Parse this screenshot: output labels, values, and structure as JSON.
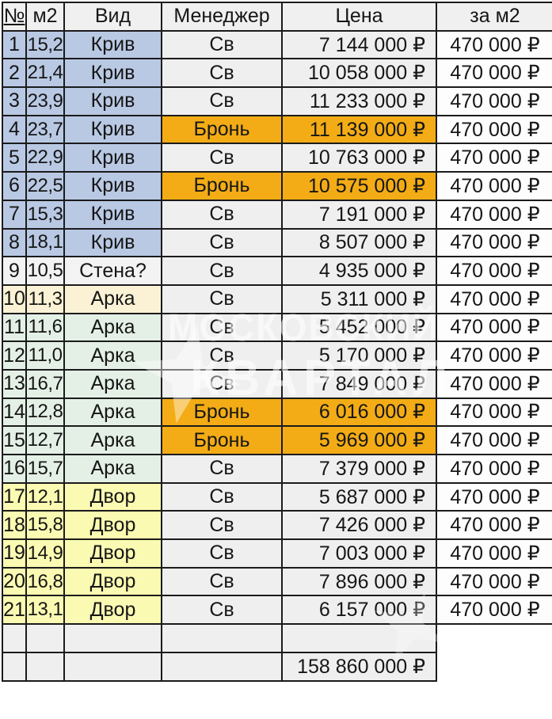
{
  "table": {
    "columns": [
      {
        "key": "num",
        "label": "№"
      },
      {
        "key": "m2",
        "label": "м2"
      },
      {
        "key": "vid",
        "label": "Вид"
      },
      {
        "key": "manager",
        "label": "Менеджер"
      },
      {
        "key": "price",
        "label": "Цена"
      },
      {
        "key": "per_m2",
        "label": "за м2"
      }
    ],
    "rows": [
      {
        "num": "1",
        "m2": "15,2",
        "vid": "Крив",
        "manager": "Св",
        "price": "7 144 000 ₽",
        "per_m2": "470 000 ₽",
        "band": "blue",
        "booked": false
      },
      {
        "num": "2",
        "m2": "21,4",
        "vid": "Крив",
        "manager": "Св",
        "price": "10 058 000 ₽",
        "per_m2": "470 000 ₽",
        "band": "blue",
        "booked": false
      },
      {
        "num": "3",
        "m2": "23,9",
        "vid": "Крив",
        "manager": "Св",
        "price": "11 233 000 ₽",
        "per_m2": "470 000 ₽",
        "band": "blue",
        "booked": false
      },
      {
        "num": "4",
        "m2": "23,7",
        "vid": "Крив",
        "manager": "Бронь",
        "price": "11 139 000 ₽",
        "per_m2": "470 000 ₽",
        "band": "blue",
        "booked": true
      },
      {
        "num": "5",
        "m2": "22,9",
        "vid": "Крив",
        "manager": "Св",
        "price": "10 763 000 ₽",
        "per_m2": "470 000 ₽",
        "band": "blue",
        "booked": false
      },
      {
        "num": "6",
        "m2": "22,5",
        "vid": "Крив",
        "manager": "Бронь",
        "price": "10 575 000 ₽",
        "per_m2": "470 000 ₽",
        "band": "blue",
        "booked": true
      },
      {
        "num": "7",
        "m2": "15,3",
        "vid": "Крив",
        "manager": "Св",
        "price": "7 191 000 ₽",
        "per_m2": "470 000 ₽",
        "band": "blue",
        "booked": false
      },
      {
        "num": "8",
        "m2": "18,1",
        "vid": "Крив",
        "manager": "Св",
        "price": "8 507 000 ₽",
        "per_m2": "470 000 ₽",
        "band": "blue",
        "booked": false
      },
      {
        "num": "9",
        "m2": "10,5",
        "vid": "Стена?",
        "manager": "Св",
        "price": "4 935 000 ₽",
        "per_m2": "470 000 ₽",
        "band": "gray",
        "booked": false
      },
      {
        "num": "10",
        "m2": "11,3",
        "vid": "Арка",
        "manager": "Св",
        "price": "5 311 000 ₽",
        "per_m2": "470 000 ₽",
        "band": "cream",
        "booked": false
      },
      {
        "num": "11",
        "m2": "11,6",
        "vid": "Арка",
        "manager": "Св",
        "price": "5 452 000 ₽",
        "per_m2": "470 000 ₽",
        "band": "green",
        "booked": false
      },
      {
        "num": "12",
        "m2": "11,0",
        "vid": "Арка",
        "manager": "Св",
        "price": "5 170 000 ₽",
        "per_m2": "470 000 ₽",
        "band": "green",
        "booked": false
      },
      {
        "num": "13",
        "m2": "16,7",
        "vid": "Арка",
        "manager": "Св",
        "price": "7 849 000 ₽",
        "per_m2": "470 000 ₽",
        "band": "green",
        "booked": false
      },
      {
        "num": "14",
        "m2": "12,8",
        "vid": "Арка",
        "manager": "Бронь",
        "price": "6 016 000 ₽",
        "per_m2": "470 000 ₽",
        "band": "green",
        "booked": true
      },
      {
        "num": "15",
        "m2": "12,7",
        "vid": "Арка",
        "manager": "Бронь",
        "price": "5 969 000 ₽",
        "per_m2": "470 000 ₽",
        "band": "green",
        "booked": true
      },
      {
        "num": "16",
        "m2": "15,7",
        "vid": "Арка",
        "manager": "Св",
        "price": "7 379 000 ₽",
        "per_m2": "470 000 ₽",
        "band": "green",
        "booked": false
      },
      {
        "num": "17",
        "m2": "12,1",
        "vid": "Двор",
        "manager": "Св",
        "price": "5 687 000 ₽",
        "per_m2": "470 000 ₽",
        "band": "yellow",
        "booked": false
      },
      {
        "num": "18",
        "m2": "15,8",
        "vid": "Двор",
        "manager": "Св",
        "price": "7 426 000 ₽",
        "per_m2": "470 000 ₽",
        "band": "yellow",
        "booked": false
      },
      {
        "num": "19",
        "m2": "14,9",
        "vid": "Двор",
        "manager": "Св",
        "price": "7 003 000 ₽",
        "per_m2": "470 000 ₽",
        "band": "yellow",
        "booked": false
      },
      {
        "num": "20",
        "m2": "16,8",
        "vid": "Двор",
        "manager": "Св",
        "price": "7 896 000 ₽",
        "per_m2": "470 000 ₽",
        "band": "yellow",
        "booked": false
      },
      {
        "num": "21",
        "m2": "13,1",
        "vid": "Двор",
        "manager": "Св",
        "price": "6 157 000 ₽",
        "per_m2": "470 000 ₽",
        "band": "yellow",
        "booked": false
      }
    ],
    "total_price": "158 860 000 ₽"
  },
  "watermark": {
    "line1": "МОСКОВСКИЙ",
    "line2": "КВАРТАЛ"
  },
  "colors": {
    "header_bg": "#f0f0f0",
    "band_blue": "#b9c9e4",
    "band_gray": "#f3f3f3",
    "band_cream": "#fbf2d5",
    "band_green": "#e4f0e5",
    "band_yellow": "#fafab2",
    "cell_gray": "#efefef",
    "booked_orange": "#f3ac15",
    "per_m2_bg": "#fdfdfd",
    "border": "#1b1b1b"
  }
}
